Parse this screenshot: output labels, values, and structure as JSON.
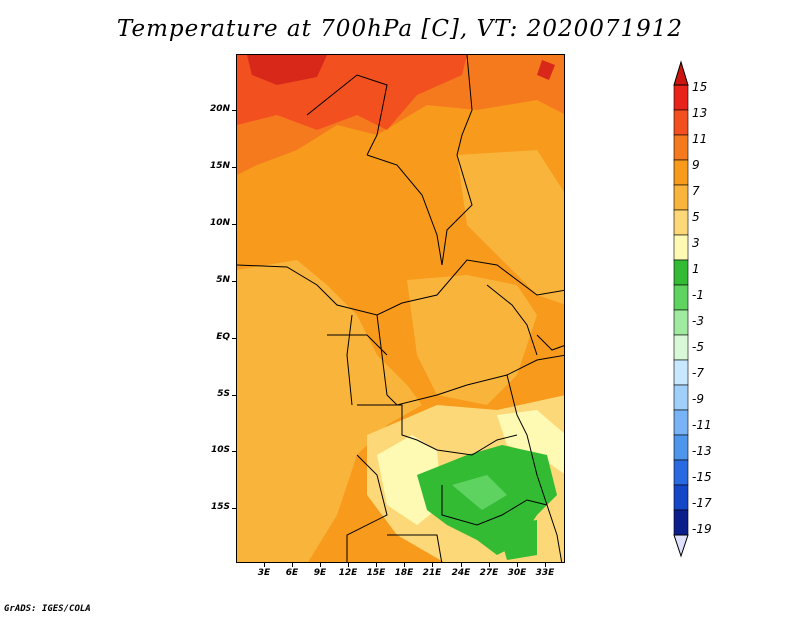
{
  "title": "Temperature at 700hPa [C], VT: 2020071912",
  "footer": "GrADS: IGES/COLA",
  "map": {
    "lat_labels": [
      "20N",
      "15N",
      "10N",
      "5N",
      "EQ",
      "5S",
      "10S",
      "15S"
    ],
    "lat_values": [
      20,
      15,
      10,
      5,
      0,
      -5,
      -10,
      -15
    ],
    "lon_labels": [
      "3E",
      "6E",
      "9E",
      "12E",
      "15E",
      "18E",
      "21E",
      "24E",
      "27E",
      "30E",
      "33E"
    ],
    "lon_values": [
      3,
      6,
      9,
      12,
      15,
      18,
      21,
      24,
      27,
      30,
      33
    ],
    "lon_range": [
      0,
      35
    ],
    "lat_range": [
      -20,
      25
    ],
    "units": "C"
  },
  "colorbar": {
    "labels": [
      "15",
      "13",
      "11",
      "9",
      "7",
      "5",
      "3",
      "1",
      "-1",
      "-3",
      "-5",
      "-7",
      "-9",
      "-11",
      "-13",
      "-15",
      "-17",
      "-19"
    ],
    "colors": [
      "#e8241a",
      "#f2501e",
      "#f57a1e",
      "#f89a1c",
      "#f9b43c",
      "#fdd878",
      "#fefab4",
      "#34bb34",
      "#5fd35f",
      "#a0eba0",
      "#d8f8d8",
      "#c8e8ff",
      "#a0d0fa",
      "#78b4f5",
      "#4e96ec",
      "#2a6ae0",
      "#1446c8",
      "#0a1e8c"
    ],
    "top_cap_color": "#cc1410",
    "bottom_cap_color": "#e0e0ff"
  }
}
